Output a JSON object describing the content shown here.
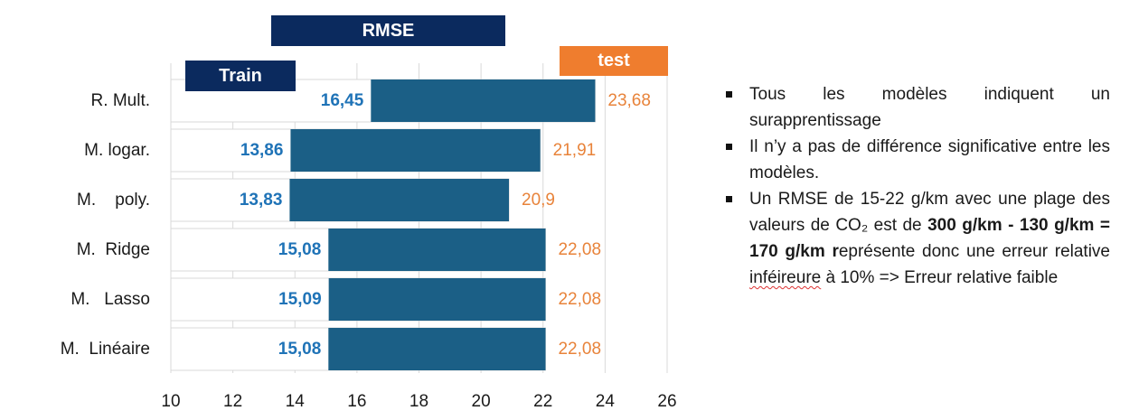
{
  "chart_data": {
    "type": "bar",
    "subtype": "floating-range",
    "title": "RMSE",
    "legend": {
      "train_label": "Train",
      "test_label": "test"
    },
    "categories": [
      "R. Mult.",
      "M. logar.",
      "M.    poly.",
      "M.  Ridge",
      "M.   Lasso",
      "M.  Linéaire"
    ],
    "series": [
      {
        "name": "Train",
        "values": [
          16.45,
          13.86,
          13.83,
          15.08,
          15.09,
          15.08
        ],
        "labels": [
          "16,45",
          "13,86",
          "13,83",
          "15,08",
          "15,09",
          "15,08"
        ]
      },
      {
        "name": "test",
        "values": [
          23.68,
          21.91,
          20.9,
          22.08,
          22.08,
          22.08
        ],
        "labels": [
          "23,68",
          "21,91",
          "20,9",
          "22,08",
          "22,08",
          "22,08"
        ]
      }
    ],
    "xlim": [
      10,
      26
    ],
    "xticks": [
      10,
      12,
      14,
      16,
      18,
      20,
      22,
      24,
      26
    ],
    "grid": "vertical",
    "colors": {
      "bar": "#1b5f86",
      "train_label": "#1f73b7",
      "test_label": "#e8833a",
      "header": "#0b2a5e",
      "test_header": "#ef7d2e",
      "grid": "#d9d9d9",
      "row_border": "#d8d8d8"
    }
  },
  "notes": [
    {
      "parts": [
        {
          "text": "Tous les modèles indiquent un surapprentissage"
        }
      ]
    },
    {
      "parts": [
        {
          "text": "Il n’y a pas de différence significative entre les modèles."
        }
      ]
    },
    {
      "parts": [
        {
          "text": "Un RMSE de 15-22 g/km avec une plage des valeurs de CO₂ est de "
        },
        {
          "text": "300 g/km - 130 g/km = 170 g/km r",
          "bold": true
        },
        {
          "text": "eprésente donc une erreur relative "
        },
        {
          "text": "inféireure",
          "misspelled": true
        },
        {
          "text": " à 10% => Erreur relative faible"
        }
      ]
    }
  ]
}
